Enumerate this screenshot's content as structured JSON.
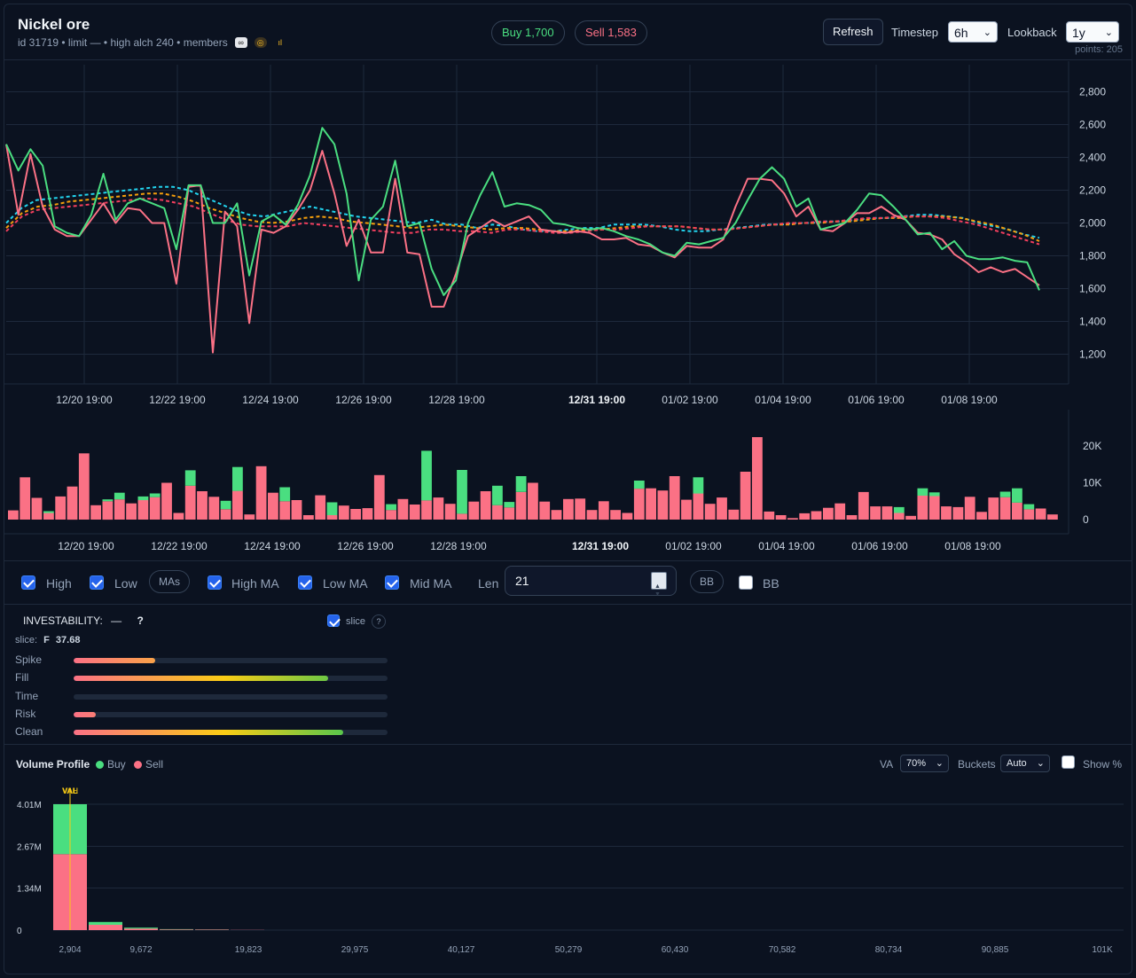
{
  "item": {
    "name": "Nickel ore",
    "subtitle": "id 31719 • limit — • high alch 240 • members",
    "icons": [
      "wiki-icon",
      "ge-icon",
      "chart-icon"
    ]
  },
  "prices": {
    "buy": "Buy 1,700",
    "sell": "Sell 1,583"
  },
  "toolbar": {
    "refresh": "Refresh",
    "timestep_label": "Timestep",
    "timestep_value": "6h",
    "lookback_label": "Lookback",
    "lookback_value": "1y",
    "points": "points: 205"
  },
  "colors": {
    "buy": "#4ade80",
    "sell": "#fb7185",
    "ma_high": "#22d3ee",
    "ma_low": "#f43f5e",
    "ma_mid": "#f59e0b",
    "background": "#0b1220"
  },
  "chart_data": [
    {
      "type": "line",
      "y_ticks": [
        "2,800",
        "2,600",
        "2,400",
        "2,200",
        "2,000",
        "1,800",
        "1,600",
        "1,400",
        "1,200"
      ],
      "x_ticks": [
        "12/20 19:00",
        "12/22 19:00",
        "12/24 19:00",
        "12/26 19:00",
        "12/28 19:00",
        "12/31 19:00",
        "01/02 19:00",
        "01/04 19:00",
        "01/06 19:00",
        "01/08 19:00"
      ],
      "ylim": [
        1100,
        2900
      ],
      "grid": true,
      "series": [
        {
          "name": "High",
          "values": [
            2480,
            2320,
            2450,
            2350,
            1980,
            1940,
            1920,
            2050,
            2300,
            2020,
            2120,
            2150,
            2120,
            2090,
            1840,
            2230,
            2230,
            2000,
            2000,
            2120,
            1680,
            2010,
            2050,
            1990,
            2110,
            2290,
            2580,
            2480,
            2180,
            1650,
            2020,
            2100,
            2380,
            1980,
            2000,
            1720,
            1560,
            1650,
            2000,
            2170,
            2310,
            2100,
            2120,
            2110,
            2080,
            2000,
            1990,
            1970,
            1960,
            1970,
            1950,
            1920,
            1900,
            1870,
            1820,
            1800,
            1880,
            1870,
            1890,
            1910,
            2000,
            2140,
            2270,
            2340,
            2270,
            2100,
            2150,
            1960,
            1980,
            2000,
            2080,
            2180,
            2170,
            2100,
            2020,
            1930,
            1940,
            1840,
            1890,
            1800,
            1780,
            1780,
            1790,
            1770,
            1760,
            1590
          ]
        },
        {
          "name": "Low",
          "values": [
            2480,
            2050,
            2420,
            2100,
            1960,
            1920,
            1920,
            2020,
            2120,
            2000,
            2090,
            2080,
            2000,
            2000,
            1630,
            2220,
            2230,
            1210,
            2070,
            1980,
            1390,
            1960,
            1940,
            1980,
            2080,
            2200,
            2440,
            2180,
            1860,
            2020,
            1820,
            1820,
            2270,
            1820,
            1810,
            1490,
            1490,
            1690,
            1920,
            1970,
            2020,
            1980,
            2010,
            2040,
            1960,
            1950,
            1940,
            1950,
            1940,
            1900,
            1900,
            1910,
            1870,
            1860,
            1820,
            1790,
            1860,
            1850,
            1850,
            1900,
            2100,
            2270,
            2270,
            2260,
            2180,
            2040,
            2100,
            1960,
            1950,
            2000,
            2060,
            2060,
            2100,
            2050,
            2020,
            1940,
            1930,
            1900,
            1810,
            1760,
            1700,
            1730,
            1700,
            1720,
            1670,
            1620
          ]
        },
        {
          "name": "High MA",
          "values": [
            2000,
            2090,
            2140,
            2150,
            2160,
            2170,
            2180,
            2190,
            2200,
            2210,
            2220,
            2220,
            2200,
            2160,
            2120,
            2080,
            2050,
            2040,
            2060,
            2080,
            2100,
            2080,
            2060,
            2040,
            2030,
            2020,
            2010,
            2000,
            2020,
            1990,
            1990,
            1970,
            1990,
            1980,
            1960,
            1950,
            1950,
            1960,
            1970,
            1970,
            1990,
            1990,
            1990,
            1980,
            1960,
            1950,
            1950,
            1960,
            1970,
            1980,
            1990,
            1990,
            2000,
            2000,
            2010,
            2010,
            2020,
            2030,
            2030,
            2040,
            2050,
            2050,
            2040,
            2030,
            2000,
            1980,
            1960,
            1930,
            1910
          ]
        },
        {
          "name": "Low MA",
          "values": [
            1950,
            2040,
            2080,
            2090,
            2100,
            2110,
            2120,
            2130,
            2140,
            2150,
            2140,
            2120,
            2100,
            2060,
            2020,
            1990,
            1980,
            1980,
            1980,
            2000,
            1990,
            1980,
            1970,
            1960,
            1950,
            1940,
            1940,
            1960,
            1960,
            1950,
            1950,
            1940,
            1960,
            1960,
            1950,
            1940,
            1940,
            1950,
            1960,
            1960,
            1970,
            1980,
            1980,
            1980,
            1970,
            1960,
            1960,
            1970,
            1980,
            1990,
            2000,
            2000,
            2010,
            2010,
            2020,
            2030,
            2030,
            2040,
            2040,
            2040,
            2030,
            2010,
            1990,
            1960,
            1930,
            1900,
            1870
          ]
        },
        {
          "name": "Mid MA",
          "values": [
            1970,
            2060,
            2100,
            2110,
            2130,
            2140,
            2150,
            2160,
            2170,
            2180,
            2180,
            2160,
            2130,
            2090,
            2060,
            2030,
            2010,
            2000,
            2010,
            2030,
            2040,
            2030,
            2010,
            2000,
            1990,
            1980,
            1970,
            1980,
            1990,
            1980,
            1970,
            1960,
            1970,
            1970,
            1960,
            1950,
            1950,
            1960,
            1960,
            1970,
            1980,
            1980,
            1980,
            1980,
            1970,
            1960,
            1960,
            1970,
            1980,
            1990,
            1990,
            2000,
            2000,
            2010,
            2010,
            2020,
            2030,
            2030,
            2040,
            2040,
            2040,
            2030,
            2010,
            1990,
            1960,
            1930,
            1890
          ]
        }
      ]
    },
    {
      "type": "bar",
      "y_ticks": [
        "20K",
        "10K",
        "0"
      ],
      "x_ticks": [
        "12/20 19:00",
        "12/22 19:00",
        "12/24 19:00",
        "12/26 19:00",
        "12/28 19:00",
        "12/31 19:00",
        "01/02 19:00",
        "01/04 19:00",
        "01/06 19:00",
        "01/08 19:00"
      ],
      "ylim": [
        0,
        25000
      ],
      "series": [
        {
          "name": "Sell",
          "values": [
            2500,
            11500,
            5900,
            1800,
            6300,
            9000,
            18000,
            3900,
            5000,
            5500,
            4400,
            5300,
            6100,
            10000,
            1800,
            9200,
            7700,
            6200,
            2800,
            7800,
            1400,
            14500,
            7300,
            5000,
            5300,
            1200,
            6600,
            1200,
            3800,
            2900,
            3100,
            12100,
            2600,
            5600,
            4100,
            5200,
            6000,
            4300,
            1600,
            4900,
            7700,
            3900,
            3300,
            7500,
            10000,
            4900,
            2600,
            5600,
            5700,
            2600,
            5000,
            2600,
            1800,
            8400,
            8500,
            7900,
            11800,
            5400,
            7100,
            4300,
            6000,
            2700,
            13000,
            22400,
            2200,
            1200,
            400,
            1700,
            2300,
            3200,
            4400,
            1200,
            7500,
            3600,
            3600,
            1800,
            1000,
            6500,
            6400,
            3600,
            3400,
            6200,
            2100,
            6000,
            6100,
            4600,
            2800,
            3000,
            1400
          ]
        },
        {
          "name": "Buy",
          "values": [
            0,
            0,
            0,
            500,
            0,
            0,
            0,
            0,
            500,
            1800,
            0,
            1000,
            1000,
            0,
            0,
            4200,
            0,
            0,
            2300,
            6500,
            0,
            0,
            0,
            3800,
            0,
            0,
            0,
            3500,
            0,
            0,
            0,
            0,
            1600,
            0,
            0,
            13500,
            0,
            0,
            11900,
            0,
            0,
            5300,
            1500,
            4300,
            0,
            0,
            0,
            0,
            0,
            0,
            0,
            0,
            0,
            2200,
            0,
            0,
            0,
            0,
            4400,
            0,
            0,
            0,
            0,
            0,
            0,
            0,
            0,
            0,
            0,
            0,
            0,
            0,
            0,
            0,
            0,
            1600,
            0,
            2000,
            1000,
            0,
            0,
            0,
            0,
            0,
            1500,
            3900,
            1400,
            0,
            0
          ]
        }
      ]
    },
    {
      "type": "bar",
      "title": "Volume Profile",
      "y_ticks": [
        "4.01M",
        "2.67M",
        "1.34M",
        "0"
      ],
      "x_ticks": [
        "2,904",
        "9,672",
        "19,823",
        "29,975",
        "40,127",
        "50,279",
        "60,430",
        "70,582",
        "80,734",
        "90,885",
        "101K"
      ],
      "ylim": [
        0,
        4010000
      ],
      "series": [
        {
          "name": "Sell",
          "values": [
            2420000,
            170000,
            50000,
            20000,
            15000,
            5000
          ]
        },
        {
          "name": "Buy",
          "values": [
            1590000,
            90000,
            30000,
            10000,
            5000,
            0
          ]
        }
      ],
      "markers": {
        "vah_val": "VAL",
        "poc_label": "VAH"
      }
    }
  ],
  "controls": {
    "high": "High",
    "low": "Low",
    "mas_chip": "MAs",
    "high_ma": "High MA",
    "low_ma": "Low MA",
    "mid_ma": "Mid MA",
    "len_label": "Len",
    "len_value": "21",
    "bb_chip": "BB",
    "bb": "BB"
  },
  "investability": {
    "title": "INVESTABILITY:",
    "value": "—",
    "help": "?",
    "slice_toggle": "slice",
    "slice_label": "slice:",
    "slice_grade": "F",
    "slice_score": "37.68",
    "metrics": [
      {
        "name": "Spike",
        "level": 0.26
      },
      {
        "name": "Fill",
        "level": 0.81
      },
      {
        "name": "Time",
        "level": 0
      },
      {
        "name": "Risk",
        "level": 0.07
      },
      {
        "name": "Clean",
        "level": 0.86
      }
    ]
  },
  "volume_profile": {
    "title": "Volume Profile",
    "buy_legend": "Buy",
    "sell_legend": "Sell",
    "va_label": "VA",
    "va_value": "70%",
    "buckets_label": "Buckets",
    "buckets_value": "Auto",
    "show_pct": "Show %"
  }
}
